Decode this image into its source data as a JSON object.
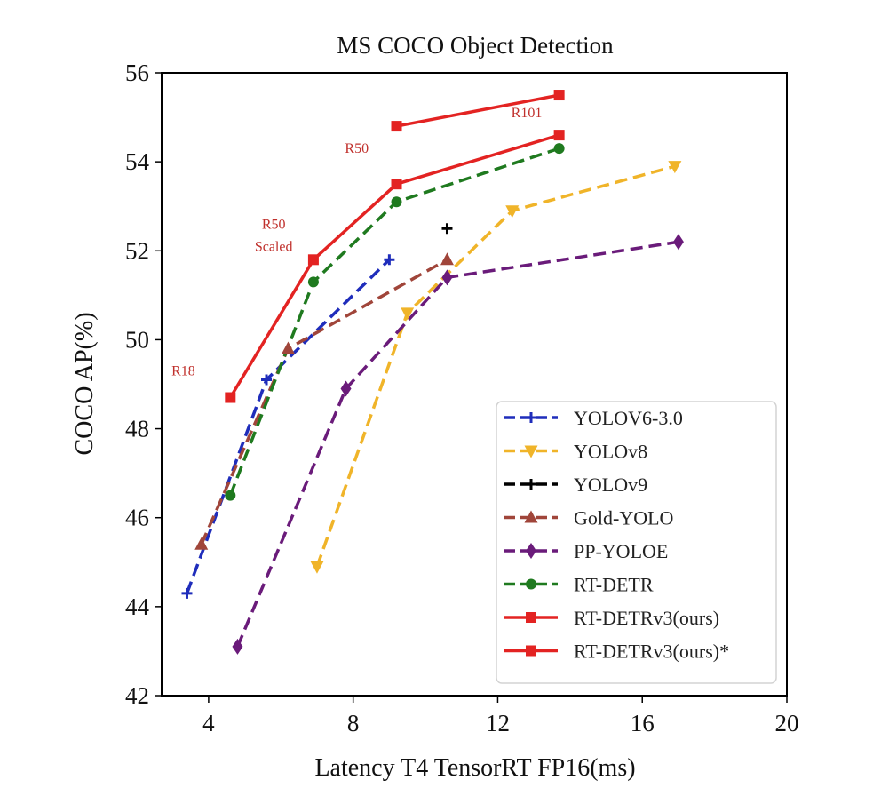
{
  "chart_data": {
    "type": "line",
    "title": "MS COCO Object Detection",
    "xlabel": "Latency T4 TensorRT FP16(ms)",
    "ylabel": "COCO AP(%)",
    "xlim": [
      2.7,
      20
    ],
    "ylim": [
      42,
      56
    ],
    "xticks": [
      4,
      8,
      12,
      16,
      20
    ],
    "yticks": [
      42,
      44,
      46,
      48,
      50,
      52,
      54,
      56
    ],
    "legend_position": "lower-right",
    "series": [
      {
        "name": "YOLOV6-3.0",
        "color": "#1f2dbb",
        "dash": "dashed",
        "marker": "plus",
        "x": [
          3.4,
          5.6,
          9.0
        ],
        "y": [
          44.3,
          49.1,
          51.8
        ]
      },
      {
        "name": "YOLOv8",
        "color": "#f0b429",
        "dash": "dashed",
        "marker": "triangle-down",
        "x": [
          7.0,
          9.5,
          12.4,
          16.9
        ],
        "y": [
          44.9,
          50.6,
          52.9,
          53.9
        ]
      },
      {
        "name": "YOLOv9",
        "color": "#000000",
        "dash": "dashed",
        "marker": "plus",
        "x": [
          10.6
        ],
        "y": [
          52.5
        ]
      },
      {
        "name": "Gold-YOLO",
        "color": "#a0453a",
        "dash": "dashed",
        "marker": "triangle-up",
        "x": [
          3.8,
          6.2,
          10.6
        ],
        "y": [
          45.4,
          49.8,
          51.8
        ]
      },
      {
        "name": "PP-YOLOE",
        "color": "#6a1b7a",
        "dash": "dashed",
        "marker": "diamond",
        "x": [
          4.8,
          7.8,
          10.6,
          17.0
        ],
        "y": [
          43.1,
          48.9,
          51.4,
          52.2
        ]
      },
      {
        "name": "RT-DETR",
        "color": "#1f7a1f",
        "dash": "dashed",
        "marker": "circle",
        "x": [
          4.6,
          6.9,
          9.2,
          13.7
        ],
        "y": [
          46.5,
          51.3,
          53.1,
          54.3
        ]
      },
      {
        "name": "RT-DETRv3(ours)",
        "color": "#e32322",
        "dash": "solid",
        "marker": "square",
        "x": [
          4.6,
          6.9,
          9.2,
          13.7
        ],
        "y": [
          48.7,
          51.8,
          53.5,
          54.6
        ]
      },
      {
        "name": "RT-DETRv3(ours)*",
        "color": "#e32322",
        "dash": "solid",
        "marker": "square",
        "x": [
          9.2,
          13.7
        ],
        "y": [
          54.8,
          55.5
        ]
      }
    ],
    "annotations": [
      {
        "text": "R18",
        "x": 3.3,
        "y": 49.2
      },
      {
        "text": "R50",
        "x": 5.8,
        "y": 52.5
      },
      {
        "text": "Scaled",
        "x": 5.8,
        "y": 52.0
      },
      {
        "text": "R50",
        "x": 8.1,
        "y": 54.2
      },
      {
        "text": "R101",
        "x": 12.8,
        "y": 55.0
      }
    ]
  }
}
